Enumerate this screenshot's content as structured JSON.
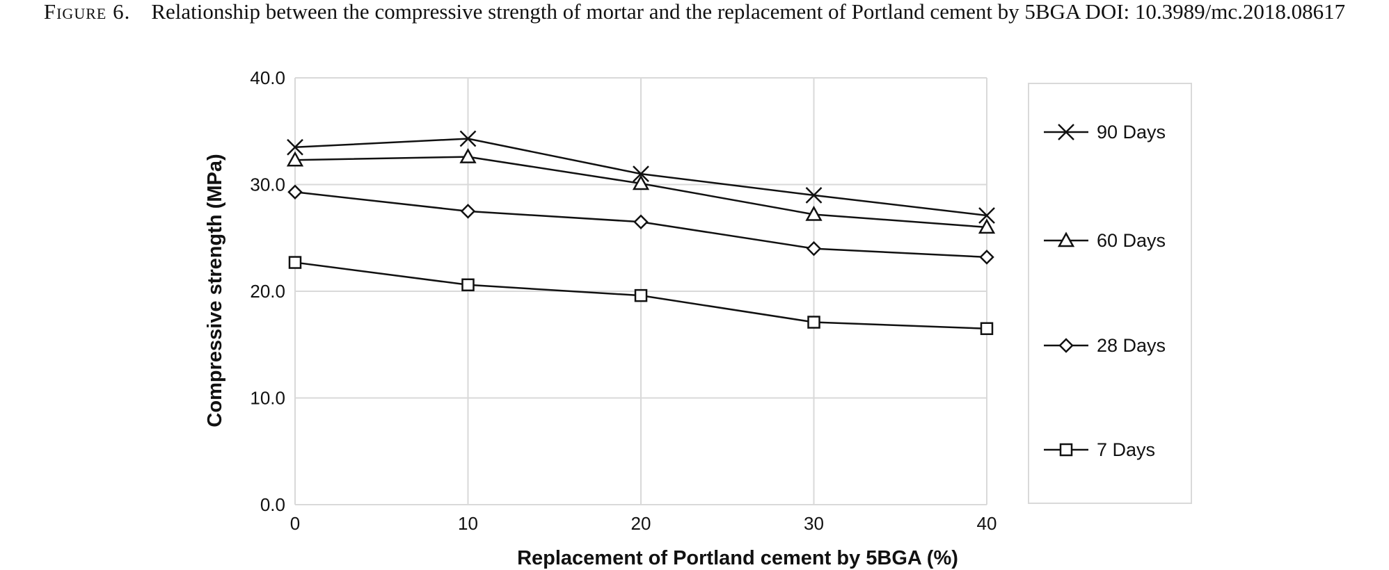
{
  "caption": {
    "label": "Figure 6.",
    "text": "Relationship between the compressive strength of mortar and the replacement of Portland cement by 5BGA DOI: 10.3989/mc.2018.08617"
  },
  "chart_data": {
    "type": "line",
    "title": "",
    "xlabel": "Replacement of Portland cement by  5BGA (%)",
    "ylabel": "Compressive strength (MPa)",
    "x": [
      0,
      10,
      20,
      30,
      40
    ],
    "xticks": [
      "0",
      "10",
      "20",
      "30",
      "40"
    ],
    "yticks": [
      "0.0",
      "10.0",
      "20.0",
      "30.0",
      "40.0"
    ],
    "xlim": [
      0,
      40
    ],
    "ylim": [
      0,
      40
    ],
    "grid": true,
    "legend_position": "right",
    "series": [
      {
        "name": "90 Days",
        "marker": "x",
        "values": [
          33.5,
          34.3,
          31.0,
          29.0,
          27.1
        ]
      },
      {
        "name": "60 Days",
        "marker": "triangle",
        "values": [
          32.3,
          32.6,
          30.1,
          27.2,
          26.0
        ]
      },
      {
        "name": "28 Days",
        "marker": "diamond",
        "values": [
          29.3,
          27.5,
          26.5,
          24.0,
          23.2
        ]
      },
      {
        "name": "7 Days",
        "marker": "square",
        "values": [
          22.7,
          20.6,
          19.6,
          17.1,
          16.5
        ]
      }
    ],
    "colors": {
      "line": "#111111",
      "grid": "#d9d9d9",
      "frame": "#d9d9d9"
    }
  }
}
